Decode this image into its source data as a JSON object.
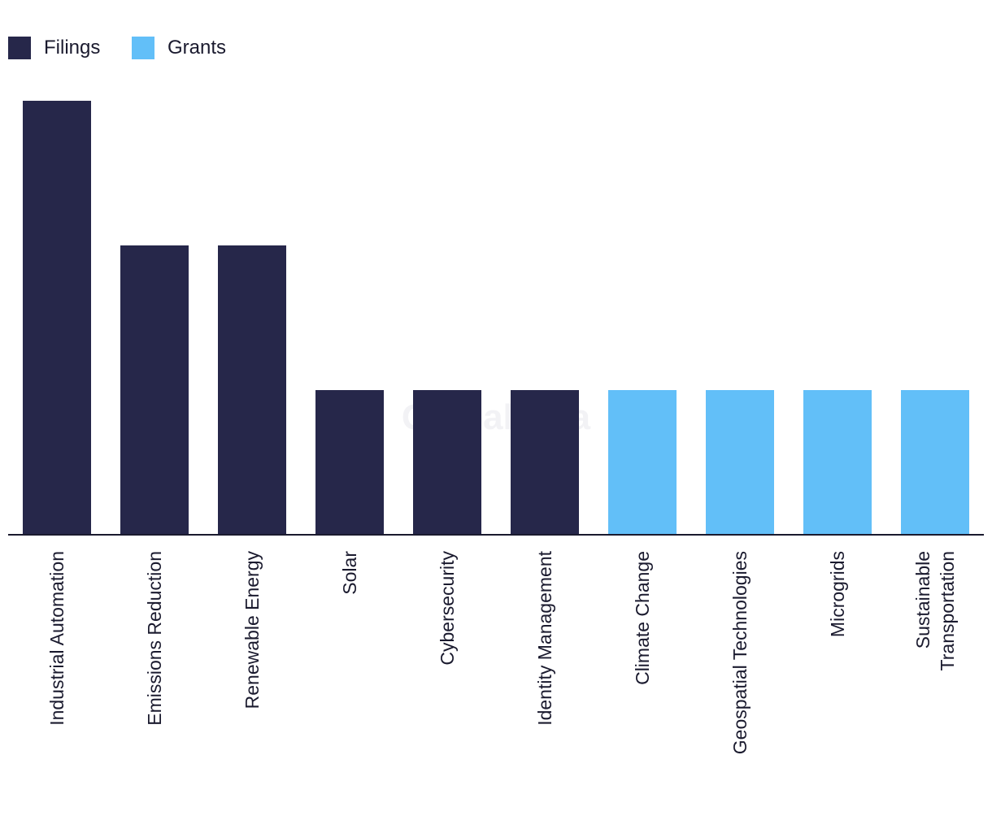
{
  "chart_data": {
    "type": "bar",
    "categories": [
      "Industrial Automation",
      "Emissions Reduction",
      "Renewable Energy",
      "Solar",
      "Cybersecurity",
      "Identity Management",
      "Climate Change",
      "Geospatial Technologies",
      "Microgrids",
      "Sustainable Transportation"
    ],
    "values": [
      3,
      2,
      2,
      1,
      1,
      1,
      1,
      1,
      1,
      1
    ],
    "series_by_category": [
      "Filings",
      "Filings",
      "Filings",
      "Filings",
      "Filings",
      "Filings",
      "Grants",
      "Grants",
      "Grants",
      "Grants"
    ],
    "series": [
      {
        "name": "Filings",
        "color": "#26274a"
      },
      {
        "name": "Grants",
        "color": "#62bff8"
      }
    ],
    "ylim": [
      0,
      3
    ],
    "grid": false,
    "legend_position": "top-left",
    "watermark": "GlobalData"
  }
}
